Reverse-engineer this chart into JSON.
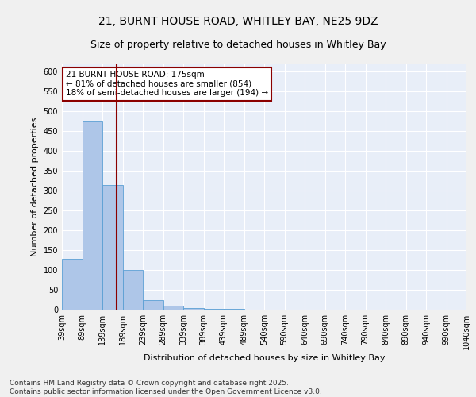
{
  "title_line1": "21, BURNT HOUSE ROAD, WHITLEY BAY, NE25 9DZ",
  "title_line2": "Size of property relative to detached houses in Whitley Bay",
  "xlabel": "Distribution of detached houses by size in Whitley Bay",
  "ylabel": "Number of detached properties",
  "bin_labels": [
    "39sqm",
    "89sqm",
    "139sqm",
    "189sqm",
    "239sqm",
    "289sqm",
    "339sqm",
    "389sqm",
    "439sqm",
    "489sqm",
    "540sqm",
    "590sqm",
    "640sqm",
    "690sqm",
    "740sqm",
    "790sqm",
    "840sqm",
    "890sqm",
    "940sqm",
    "990sqm",
    "1040sqm"
  ],
  "bar_heights": [
    128,
    475,
    315,
    100,
    25,
    10,
    5,
    2,
    2,
    1,
    1,
    1,
    1,
    1,
    1,
    1,
    1,
    1,
    1,
    1
  ],
  "bar_color": "#aec6e8",
  "bar_edge_color": "#5a9fd4",
  "vline_color": "#8b0000",
  "annotation_text": "21 BURNT HOUSE ROAD: 175sqm\n← 81% of detached houses are smaller (854)\n18% of semi-detached houses are larger (194) →",
  "annotation_box_color": "#ffffff",
  "annotation_box_edge_color": "#8b0000",
  "ylim": [
    0,
    620
  ],
  "yticks": [
    0,
    50,
    100,
    150,
    200,
    250,
    300,
    350,
    400,
    450,
    500,
    550,
    600
  ],
  "bg_color": "#e8eef8",
  "grid_color": "#ffffff",
  "fig_bg_color": "#f0f0f0",
  "footnote": "Contains HM Land Registry data © Crown copyright and database right 2025.\nContains public sector information licensed under the Open Government Licence v3.0.",
  "title_fontsize": 10,
  "subtitle_fontsize": 9,
  "axis_label_fontsize": 8,
  "tick_fontsize": 7,
  "annotation_fontsize": 7.5,
  "footnote_fontsize": 6.5
}
